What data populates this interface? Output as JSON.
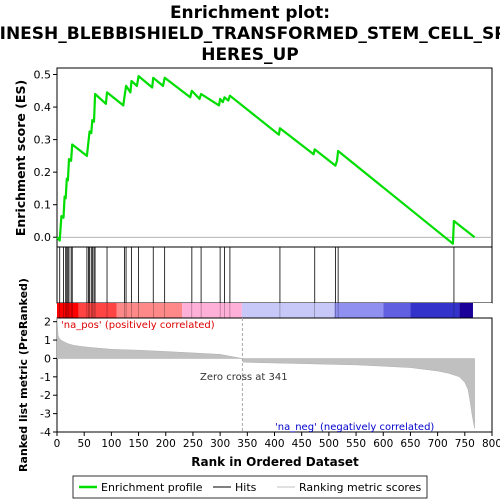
{
  "chart_data": {
    "type": "line",
    "title": "Enrichment plot: JINESH_BLEBBISHIELD_TRANSFORMED_STEM_CELL_SPHERES_UP",
    "title_lines": [
      "Enrichment plot:",
      "JINESH_BLEBBISHIELD_TRANSFORMED_STEM_CELL_SP",
      "HERES_UP"
    ],
    "xlabel": "Rank in Ordered Dataset",
    "ylabel_top": "Enrichment score (ES)",
    "ylabel_bottom": "Ranked list metric (PreRanked)",
    "xlim": [
      0,
      800
    ],
    "xticks": [
      0,
      50,
      100,
      150,
      200,
      250,
      300,
      350,
      400,
      450,
      500,
      550,
      600,
      650,
      700,
      750,
      800
    ],
    "es_ylim": [
      -0.03,
      0.52
    ],
    "es_yticks": [
      0.0,
      0.1,
      0.2,
      0.3,
      0.4,
      0.5
    ],
    "es_ytick_labels": [
      "0.0",
      "0.1",
      "0.2",
      "0.3",
      "0.4",
      "0.5"
    ],
    "metric_ylim": [
      -4,
      2.2
    ],
    "metric_yticks": [
      -4,
      -3,
      -2,
      -1,
      0,
      1,
      2
    ],
    "series": [
      {
        "name": "Enrichment profile",
        "color": "#00dd00",
        "x": [
          0,
          5,
          8,
          12,
          14,
          16,
          18,
          20,
          22,
          26,
          28,
          55,
          58,
          60,
          63,
          65,
          68,
          70,
          90,
          92,
          122,
          124,
          127,
          135,
          137,
          147,
          150,
          175,
          177,
          195,
          198,
          245,
          248,
          262,
          265,
          298,
          300,
          305,
          308,
          315,
          318,
          408,
          410,
          472,
          474,
          512,
          515,
          517,
          728,
          730,
          768
        ],
        "y": [
          0.0,
          -0.01,
          0.065,
          0.06,
          0.125,
          0.12,
          0.18,
          0.175,
          0.24,
          0.235,
          0.285,
          0.25,
          0.295,
          0.325,
          0.32,
          0.36,
          0.355,
          0.44,
          0.41,
          0.445,
          0.405,
          0.43,
          0.465,
          0.445,
          0.48,
          0.465,
          0.495,
          0.46,
          0.49,
          0.465,
          0.49,
          0.43,
          0.45,
          0.425,
          0.44,
          0.405,
          0.425,
          0.415,
          0.43,
          0.42,
          0.435,
          0.315,
          0.335,
          0.255,
          0.27,
          0.22,
          0.235,
          0.265,
          -0.02,
          0.05,
          0.0
        ]
      }
    ],
    "hits": [
      5,
      12,
      16,
      18,
      20,
      22,
      26,
      28,
      55,
      58,
      60,
      63,
      65,
      68,
      70,
      92,
      124,
      127,
      137,
      150,
      177,
      198,
      248,
      265,
      300,
      308,
      318,
      410,
      474,
      512,
      517,
      730
    ],
    "ranking_metric": {
      "x": [
        0,
        2,
        5,
        10,
        20,
        30,
        40,
        60,
        80,
        100,
        150,
        200,
        250,
        300,
        341,
        342,
        360,
        400,
        450,
        500,
        550,
        600,
        650,
        700,
        720,
        740,
        750,
        756,
        760,
        763,
        766,
        768
      ],
      "y": [
        2.2,
        1.25,
        1.05,
        0.95,
        0.8,
        0.72,
        0.67,
        0.6,
        0.55,
        0.5,
        0.45,
        0.38,
        0.3,
        0.22,
        0.0,
        -0.2,
        -0.22,
        -0.25,
        -0.28,
        -0.32,
        -0.35,
        -0.42,
        -0.5,
        -0.68,
        -0.8,
        -1.0,
        -1.3,
        -1.7,
        -2.4,
        -3.0,
        -3.5,
        -3.8
      ]
    },
    "band_colors": [
      "#ff0000",
      "#ff4444",
      "#ff8888",
      "#ffb0d8",
      "#c8c8f8",
      "#9090f0",
      "#6060e0",
      "#3333cc",
      "#1a0099"
    ],
    "band_edges": [
      0,
      40,
      110,
      230,
      340,
      510,
      600,
      650,
      740,
      765
    ],
    "zero_cross": 341,
    "zero_cross_label": "Zero cross at 341",
    "pos_label": "'na_pos' (positively correlated)",
    "neg_label": "'na_neg' (negatively correlated)",
    "legend": [
      {
        "label": "Enrichment profile",
        "color": "#00dd00"
      },
      {
        "label": "Hits",
        "color": "#000000"
      },
      {
        "label": "Ranking metric scores",
        "color": "#c0c0c0"
      }
    ]
  }
}
